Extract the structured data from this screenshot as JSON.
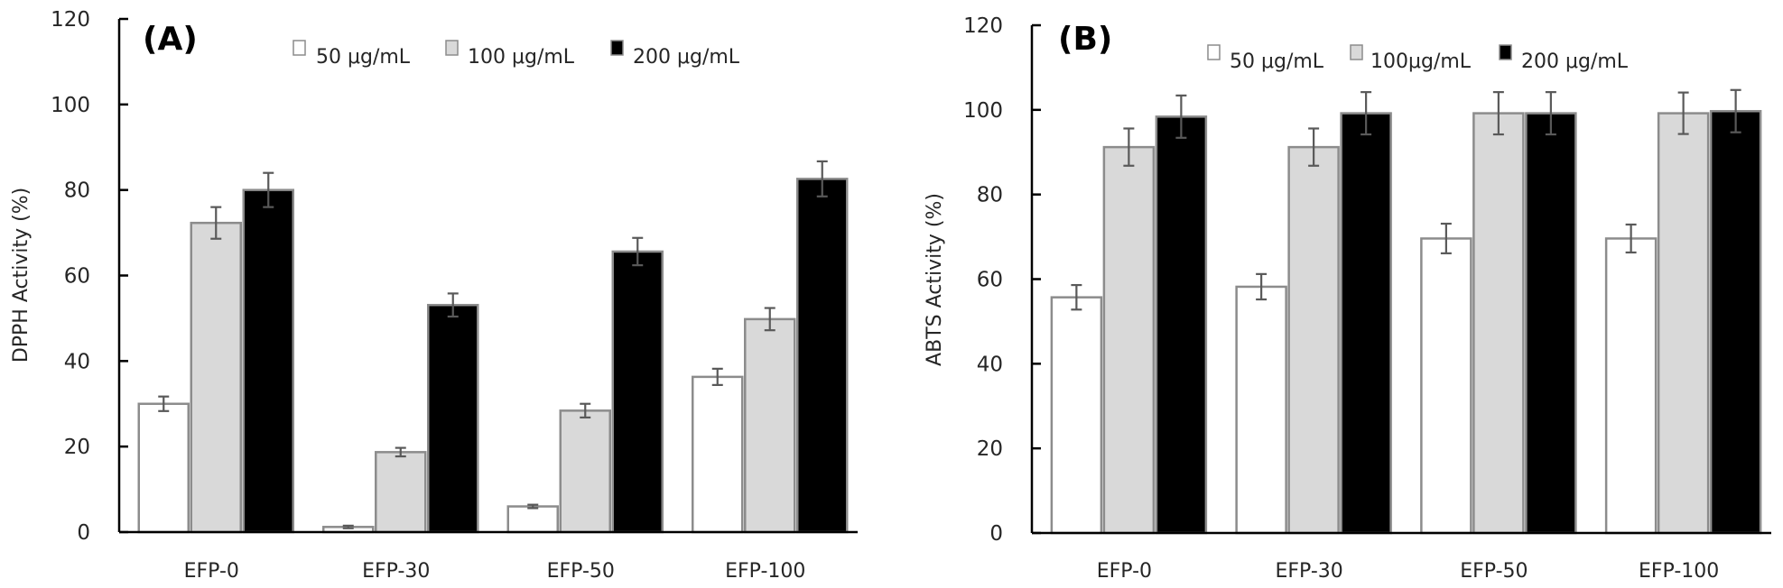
{
  "colors": {
    "series": [
      "#ffffff",
      "#d9d9d9",
      "#000000"
    ],
    "bar_border": "#8c8c8c",
    "error_bar": "#595959",
    "axis": "#000000"
  },
  "chart_data": [
    {
      "type": "bar",
      "panel_label": "(A)",
      "title": "",
      "xlabel": "",
      "ylabel": "DPPH Activity (%)",
      "ylim": [
        0,
        120
      ],
      "yticks": [
        0,
        20,
        40,
        60,
        80,
        100,
        120
      ],
      "grid": false,
      "legend_position": "top-right",
      "categories": [
        "EFP-0",
        "EFP-30",
        "EFP-50",
        "EFP-100"
      ],
      "series": [
        {
          "name": "50 μg/mL",
          "values": [
            30.0,
            1.2,
            6.0,
            36.3
          ],
          "errors": [
            1.7,
            0.3,
            0.4,
            1.9
          ]
        },
        {
          "name": "100 μg/mL",
          "values": [
            72.3,
            18.7,
            28.4,
            49.8
          ],
          "errors": [
            3.7,
            1.0,
            1.6,
            2.6
          ]
        },
        {
          "name": "200 μg/mL",
          "values": [
            80.0,
            53.1,
            65.6,
            82.6
          ],
          "errors": [
            4.0,
            2.7,
            3.2,
            4.1
          ]
        }
      ]
    },
    {
      "type": "bar",
      "panel_label": "(B)",
      "title": "",
      "xlabel": "",
      "ylabel": "ABTS Activity (%)",
      "ylim": [
        0,
        120
      ],
      "yticks": [
        0,
        20,
        40,
        60,
        80,
        100,
        120
      ],
      "grid": false,
      "legend_position": "top-right",
      "categories": [
        "EFP-0",
        "EFP-30",
        "EFP-50",
        "EFP-100"
      ],
      "series": [
        {
          "name": "50 μg/mL",
          "values": [
            55.7,
            58.2,
            69.6,
            69.6
          ],
          "errors": [
            2.9,
            3.0,
            3.5,
            3.3
          ]
        },
        {
          "name": "100μg/mL",
          "values": [
            91.2,
            91.2,
            99.2,
            99.2
          ],
          "errors": [
            4.4,
            4.4,
            5.0,
            4.9
          ]
        },
        {
          "name": "200 μg/mL",
          "values": [
            98.4,
            99.2,
            99.2,
            99.7
          ],
          "errors": [
            5.0,
            5.0,
            5.0,
            5.0
          ]
        }
      ]
    }
  ]
}
